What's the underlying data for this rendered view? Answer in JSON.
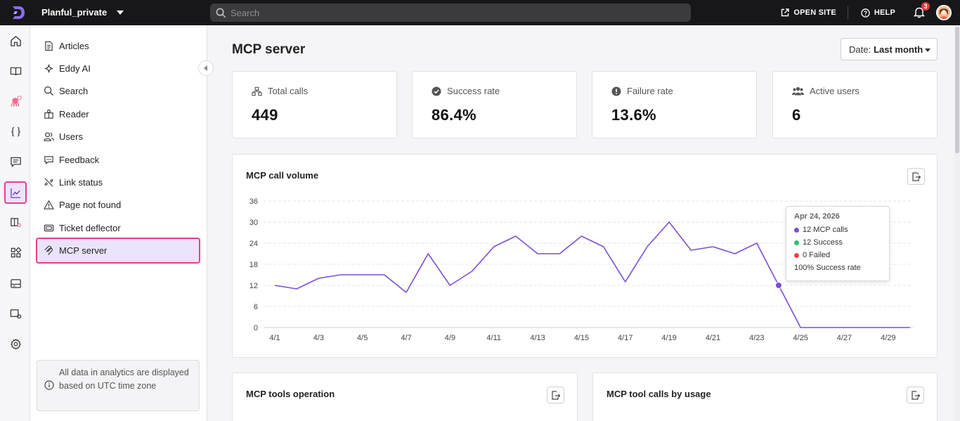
{
  "topbar": {
    "project_name": "Planful_private",
    "search_placeholder": "Search",
    "open_site_label": "OPEN SITE",
    "help_label": "HELP",
    "notification_count": "3"
  },
  "sidebar": {
    "items": [
      {
        "label": "Articles",
        "icon": "article-icon"
      },
      {
        "label": "Eddy AI",
        "icon": "sparkle-icon"
      },
      {
        "label": "Search",
        "icon": "search-icon"
      },
      {
        "label": "Reader",
        "icon": "reader-icon"
      },
      {
        "label": "Users",
        "icon": "users-icon"
      },
      {
        "label": "Feedback",
        "icon": "feedback-icon"
      },
      {
        "label": "Link status",
        "icon": "broken-link-icon"
      },
      {
        "label": "Page not found",
        "icon": "warning-icon"
      },
      {
        "label": "Ticket deflector",
        "icon": "ticket-icon"
      },
      {
        "label": "MCP server",
        "icon": "mcp-icon"
      }
    ],
    "active_item": "MCP server",
    "info_text": "All data in analytics are displayed based on UTC time zone"
  },
  "main": {
    "title": "MCP server",
    "date_filter_prefix": "Date:",
    "date_filter_value": "Last month",
    "stats": [
      {
        "label": "Total calls",
        "value": "449",
        "icon": "network-icon"
      },
      {
        "label": "Success rate",
        "value": "86.4%",
        "icon": "check-circle-icon"
      },
      {
        "label": "Failure rate",
        "value": "13.6%",
        "icon": "alert-circle-icon"
      },
      {
        "label": "Active users",
        "value": "6",
        "icon": "group-icon"
      }
    ],
    "volume_card_title": "MCP call volume",
    "tools_card_title": "MCP tools operation",
    "usage_card_title": "MCP tool calls by usage",
    "tooltip": {
      "date": "Apr 24, 2026",
      "calls": "12 MCP calls",
      "success": "12 Success",
      "failed": "0 Failed",
      "rate": "100% Success rate"
    }
  },
  "colors": {
    "accent": "#7b4fd6",
    "highlight_border": "#e83e8c",
    "success": "#2fbf71",
    "failed": "#ef4444"
  },
  "chart_data": {
    "type": "line",
    "title": "MCP call volume",
    "ylim": [
      0,
      36
    ],
    "yticks": [
      "0",
      "6",
      "12",
      "18",
      "24",
      "30",
      "36"
    ],
    "xtick_labels": [
      "4/1",
      "4/3",
      "4/5",
      "4/7",
      "4/9",
      "4/11",
      "4/13",
      "4/15",
      "4/17",
      "4/19",
      "4/21",
      "4/23",
      "4/25",
      "4/27",
      "4/29"
    ],
    "x": [
      "4/1",
      "4/2",
      "4/3",
      "4/4",
      "4/5",
      "4/6",
      "4/7",
      "4/8",
      "4/9",
      "4/10",
      "4/11",
      "4/12",
      "4/13",
      "4/14",
      "4/15",
      "4/16",
      "4/17",
      "4/18",
      "4/19",
      "4/20",
      "4/21",
      "4/22",
      "4/23",
      "4/24",
      "4/25",
      "4/26",
      "4/27",
      "4/28",
      "4/29",
      "4/30"
    ],
    "series": [
      {
        "values": [
          12,
          11,
          14,
          15,
          15,
          15,
          10,
          21,
          12,
          16,
          23,
          26,
          21,
          21,
          26,
          23,
          13,
          23,
          30,
          22,
          23,
          21,
          24,
          12,
          0,
          0,
          0,
          0,
          0,
          0
        ]
      }
    ],
    "highlight_index": 23,
    "grid": true
  }
}
